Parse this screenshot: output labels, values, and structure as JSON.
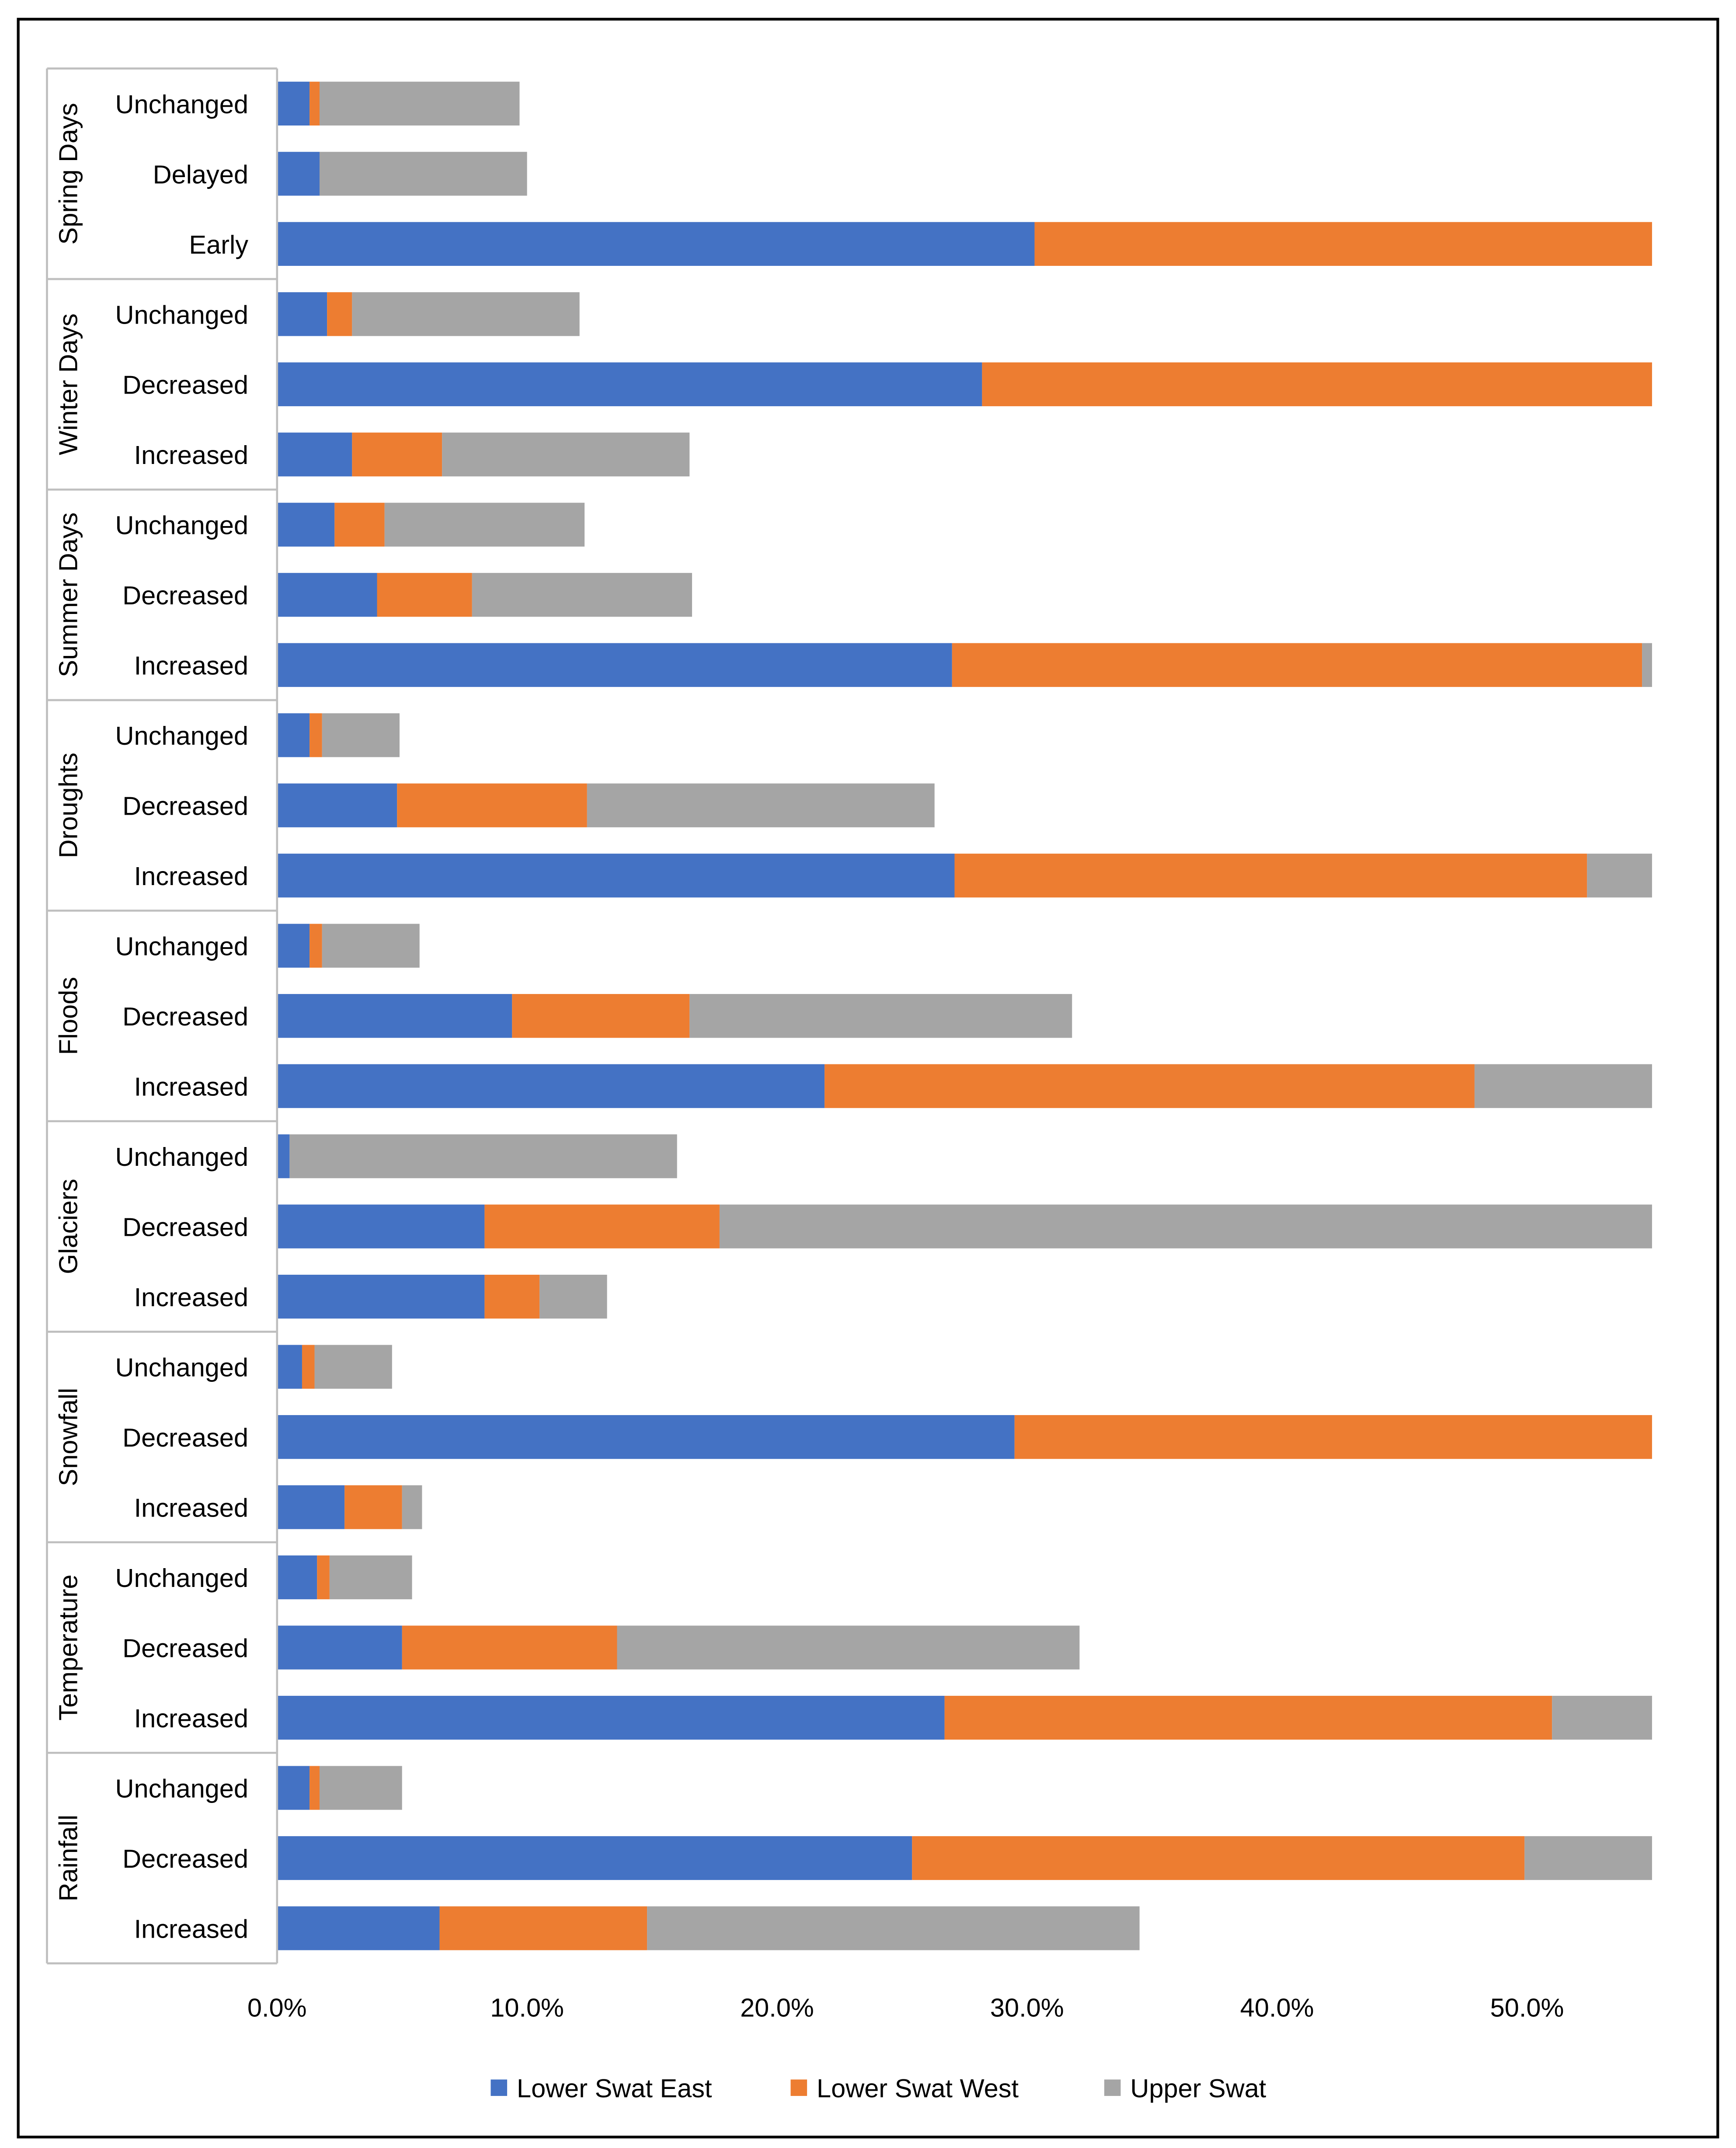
{
  "chart_data": {
    "type": "bar",
    "orientation": "horizontal",
    "stacked": true,
    "title": "",
    "xlabel": "",
    "ylabel": "",
    "xlim": [
      0,
      55
    ],
    "x_ticks": [
      "0.0%",
      "10.0%",
      "20.0%",
      "30.0%",
      "40.0%",
      "50.0%"
    ],
    "x_tick_values": [
      0,
      10,
      20,
      30,
      40,
      50
    ],
    "grid": false,
    "legend_position": "bottom",
    "series": [
      {
        "name": "Lower Swat East",
        "color": "#4472C4"
      },
      {
        "name": "Lower Swat West",
        "color": "#ED7D31"
      },
      {
        "name": "Upper Swat",
        "color": "#A5A5A5"
      }
    ],
    "groups": [
      {
        "name": "Spring Days",
        "rows": [
          {
            "label": "Unchanged",
            "values": [
              1.3,
              0.4,
              8.0
            ]
          },
          {
            "label": "Delayed",
            "values": [
              1.7,
              0.0,
              8.3
            ]
          },
          {
            "label": "Early",
            "values": [
              30.3,
              24.7,
              0.0
            ]
          }
        ]
      },
      {
        "name": "Winter Days",
        "rows": [
          {
            "label": "Unchanged",
            "values": [
              2.0,
              1.0,
              9.1
            ]
          },
          {
            "label": "Decreased",
            "values": [
              28.2,
              26.8,
              0.0
            ]
          },
          {
            "label": "Increased",
            "values": [
              3.0,
              3.6,
              9.9
            ]
          }
        ]
      },
      {
        "name": "Summer Days",
        "rows": [
          {
            "label": "Unchanged",
            "values": [
              2.3,
              2.0,
              8.0
            ]
          },
          {
            "label": "Decreased",
            "values": [
              4.0,
              3.8,
              8.8
            ]
          },
          {
            "label": "Increased",
            "values": [
              27.0,
              27.6,
              0.5
            ]
          }
        ]
      },
      {
        "name": "Droughts",
        "rows": [
          {
            "label": "Unchanged",
            "values": [
              1.3,
              0.5,
              3.1
            ]
          },
          {
            "label": "Decreased",
            "values": [
              4.8,
              7.6,
              13.9
            ]
          },
          {
            "label": "Increased",
            "values": [
              27.1,
              25.3,
              2.7
            ]
          }
        ]
      },
      {
        "name": "Floods",
        "rows": [
          {
            "label": "Unchanged",
            "values": [
              1.3,
              0.5,
              3.9
            ]
          },
          {
            "label": "Decreased",
            "values": [
              9.4,
              7.1,
              15.3
            ]
          },
          {
            "label": "Increased",
            "values": [
              21.9,
              26.0,
              7.1
            ]
          }
        ]
      },
      {
        "name": "Glaciers",
        "rows": [
          {
            "label": "Unchanged",
            "values": [
              0.5,
              0.0,
              15.5
            ]
          },
          {
            "label": "Decreased",
            "values": [
              8.3,
              9.4,
              37.4
            ]
          },
          {
            "label": "Increased",
            "values": [
              8.3,
              2.2,
              2.7
            ]
          }
        ]
      },
      {
        "name": "Snowfall",
        "rows": [
          {
            "label": "Unchanged",
            "values": [
              1.0,
              0.5,
              3.1
            ]
          },
          {
            "label": "Decreased",
            "values": [
              29.5,
              25.5,
              0.0
            ]
          },
          {
            "label": "Increased",
            "values": [
              2.7,
              2.3,
              0.8
            ]
          }
        ]
      },
      {
        "name": "Temperature",
        "rows": [
          {
            "label": "Unchanged",
            "values": [
              1.6,
              0.5,
              3.3
            ]
          },
          {
            "label": "Decreased",
            "values": [
              5.0,
              8.6,
              18.5
            ]
          },
          {
            "label": "Increased",
            "values": [
              26.7,
              24.3,
              4.0
            ]
          }
        ]
      },
      {
        "name": "Rainfall",
        "rows": [
          {
            "label": "Unchanged",
            "values": [
              1.3,
              0.4,
              3.3
            ]
          },
          {
            "label": "Decreased",
            "values": [
              25.4,
              24.5,
              5.1
            ]
          },
          {
            "label": "Increased",
            "values": [
              6.5,
              8.3,
              19.7
            ]
          }
        ]
      }
    ]
  }
}
